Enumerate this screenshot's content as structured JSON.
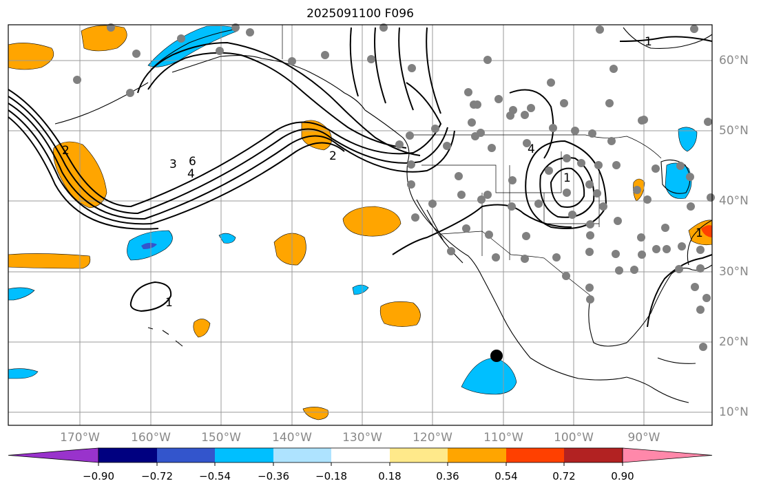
{
  "title": "2025091100 F096",
  "map": {
    "region": "North Pacific and North America",
    "lon_labels": [
      "170°W",
      "160°W",
      "150°W",
      "140°W",
      "130°W",
      "120°W",
      "110°W",
      "100°W",
      "90°W"
    ],
    "lat_labels": [
      "60°N",
      "50°N",
      "40°N",
      "30°N",
      "20°N",
      "10°N"
    ],
    "contour_labels": [
      "1",
      "2",
      "4",
      "6",
      "3",
      "4",
      "1",
      "1",
      "2",
      "1"
    ],
    "colors": {
      "gridline": "#999999",
      "coastline": "#000000",
      "contour": "#000000",
      "station_marker": "#808080",
      "storm_marker": "#000000"
    },
    "icons": {
      "station": "gray-dot-icon",
      "storm": "black-dot-icon"
    }
  },
  "colorbar": {
    "tick_labels": [
      "−0.90",
      "−0.72",
      "−0.54",
      "−0.36",
      "−0.18",
      "0.18",
      "0.36",
      "0.54",
      "0.72",
      "0.90"
    ],
    "colors": [
      "#9933cc",
      "#000080",
      "#3355cc",
      "#00bfff",
      "#aee3ff",
      "#ffffff",
      "#ffe98a",
      "#ffa500",
      "#ff4000",
      "#b22222",
      "#ff88aa"
    ],
    "extend": "both"
  }
}
